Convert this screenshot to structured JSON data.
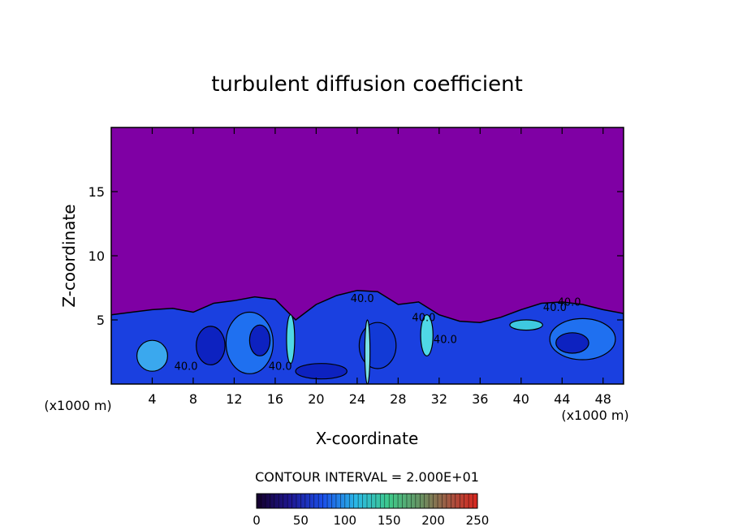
{
  "chart_data": {
    "type": "heatmap",
    "title": "turbulent diffusion coefficient",
    "xlabel": "X-coordinate",
    "ylabel": "Z-coordinate",
    "x_unit_left": "(x1000 m)",
    "x_unit_right": "(x1000 m)",
    "xlim": [
      0,
      50
    ],
    "ylim": [
      0,
      20
    ],
    "x_ticks": [
      4,
      8,
      12,
      16,
      20,
      24,
      28,
      32,
      36,
      40,
      44,
      48
    ],
    "x_tick_labels": [
      "4",
      "8",
      "12",
      "16",
      "20",
      "24",
      "28",
      "32",
      "36",
      "40",
      "44",
      "48"
    ],
    "y_ticks": [
      5,
      10,
      15
    ],
    "y_tick_labels": [
      "5",
      "10",
      "15"
    ],
    "contour_interval_label": "CONTOUR INTERVAL = 2.000E+01",
    "contour_labels": [
      {
        "text": "40.0",
        "x": 7.3,
        "z": 1.1
      },
      {
        "text": "40.0",
        "x": 16.5,
        "z": 1.1
      },
      {
        "text": "40.0",
        "x": 24.5,
        "z": 6.4
      },
      {
        "text": "40.0",
        "x": 30.5,
        "z": 4.9
      },
      {
        "text": "40.0",
        "x": 32.6,
        "z": 3.2
      },
      {
        "text": "40.0",
        "x": 43.3,
        "z": 5.7
      },
      {
        "text": "40.0",
        "x": 44.7,
        "z": 6.1
      }
    ],
    "turbulent_layer_top": [
      [
        0,
        5.4
      ],
      [
        2,
        5.6
      ],
      [
        4,
        5.8
      ],
      [
        6,
        5.9
      ],
      [
        8,
        5.6
      ],
      [
        10,
        6.3
      ],
      [
        12,
        6.5
      ],
      [
        14,
        6.8
      ],
      [
        16,
        6.6
      ],
      [
        18,
        5.0
      ],
      [
        20,
        6.2
      ],
      [
        22,
        6.9
      ],
      [
        24,
        7.3
      ],
      [
        26,
        7.2
      ],
      [
        28,
        6.2
      ],
      [
        30,
        6.4
      ],
      [
        32,
        5.4
      ],
      [
        34,
        4.9
      ],
      [
        36,
        4.8
      ],
      [
        38,
        5.2
      ],
      [
        40,
        5.8
      ],
      [
        42,
        6.3
      ],
      [
        44,
        6.4
      ],
      [
        46,
        6.2
      ],
      [
        48,
        5.8
      ],
      [
        50,
        5.5
      ]
    ],
    "colorbar": {
      "min": 0,
      "max": 250,
      "ticks": [
        "0",
        "50",
        "100",
        "150",
        "200",
        "250"
      ]
    },
    "colors": {
      "background": "#7f00a4",
      "low": "#0b1ac9",
      "mid": "#1b64f0",
      "high": "#4fd8e6"
    }
  }
}
